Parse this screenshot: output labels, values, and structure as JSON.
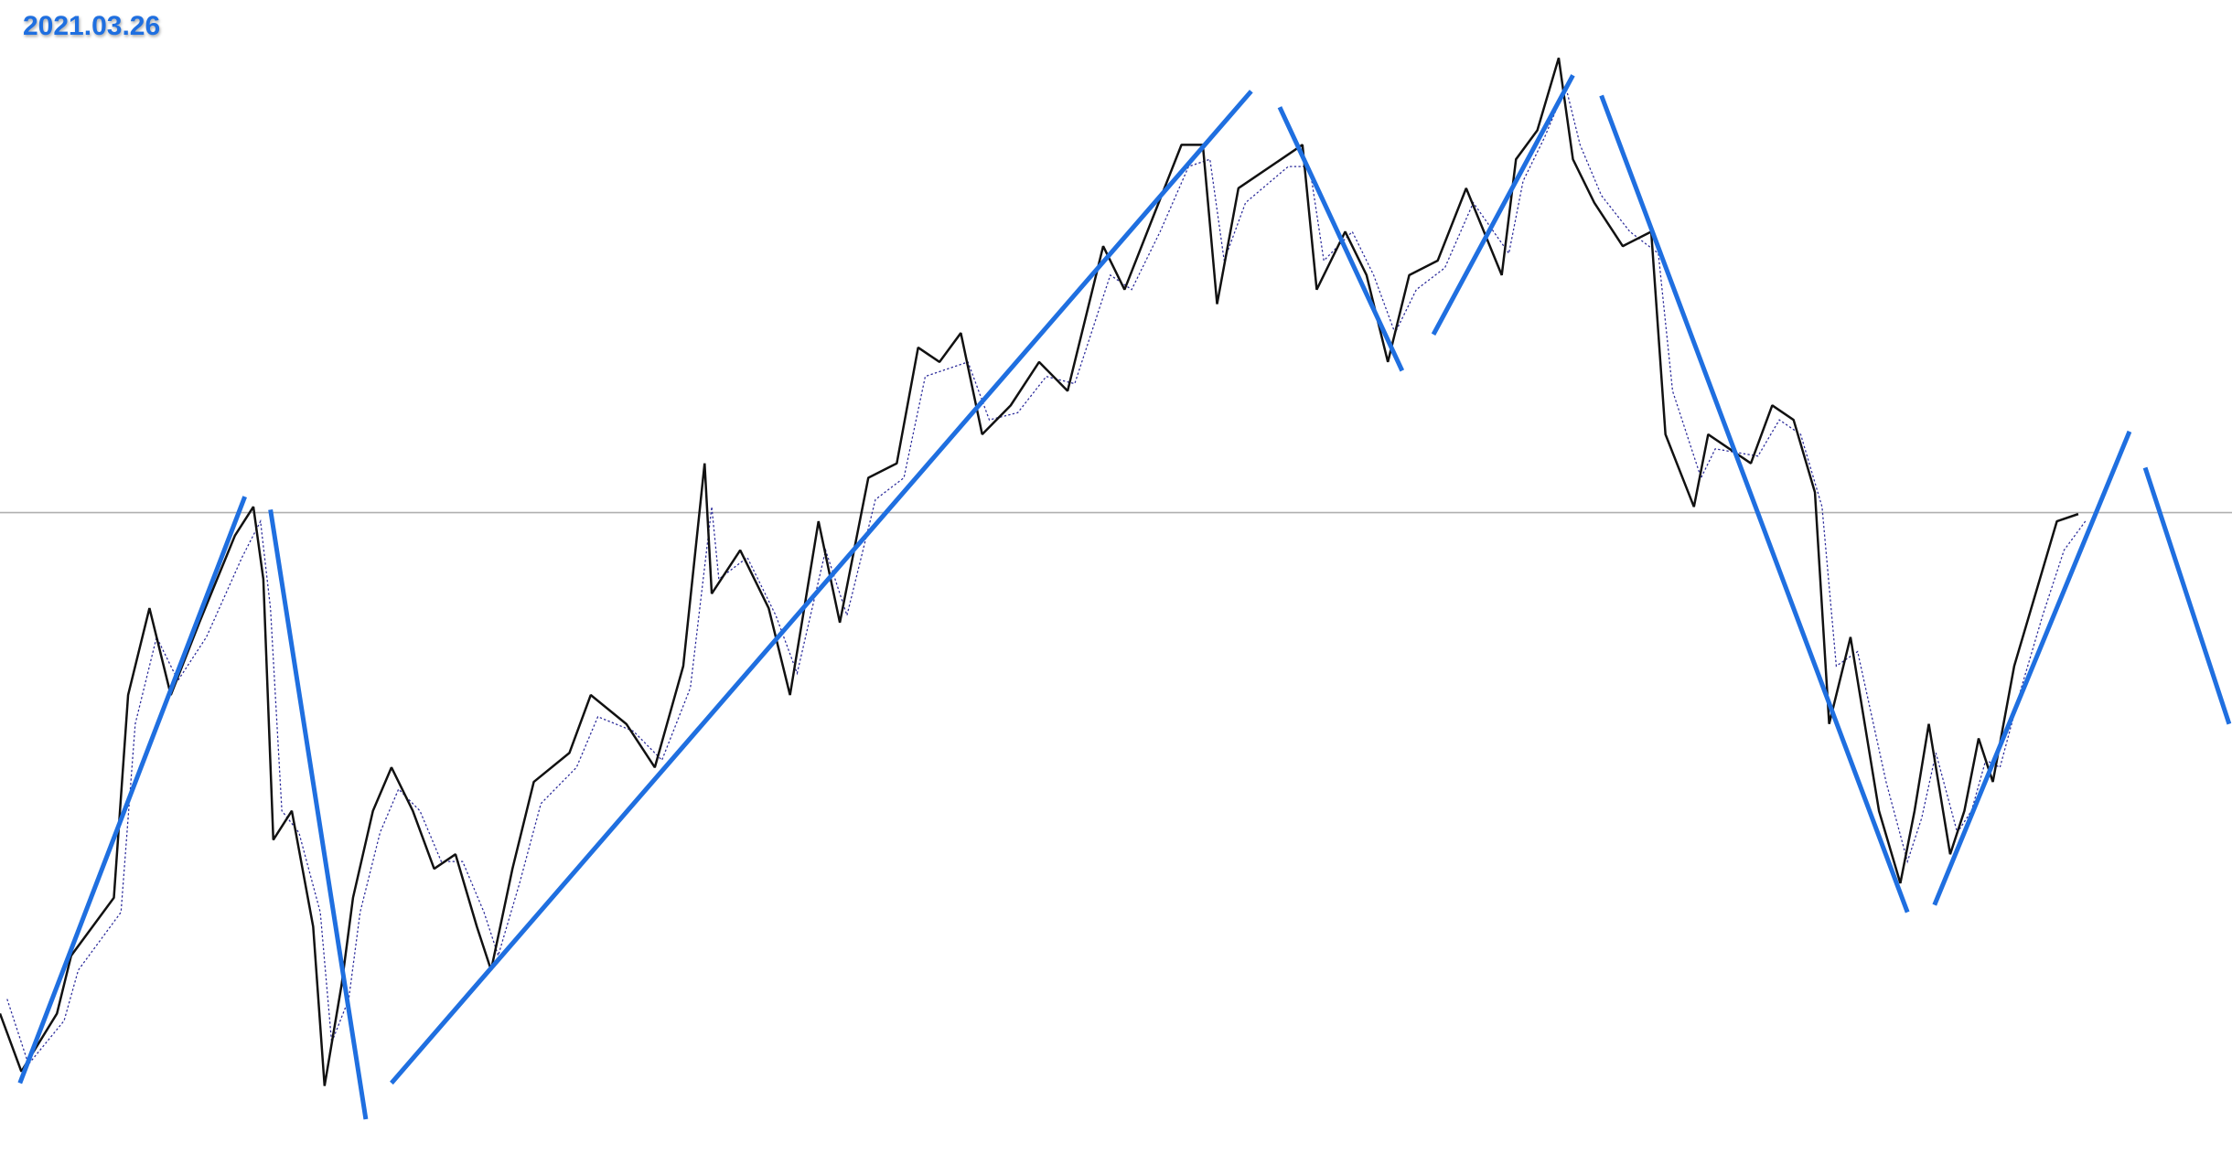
{
  "header": {
    "date": "2021.03.26"
  }
}
